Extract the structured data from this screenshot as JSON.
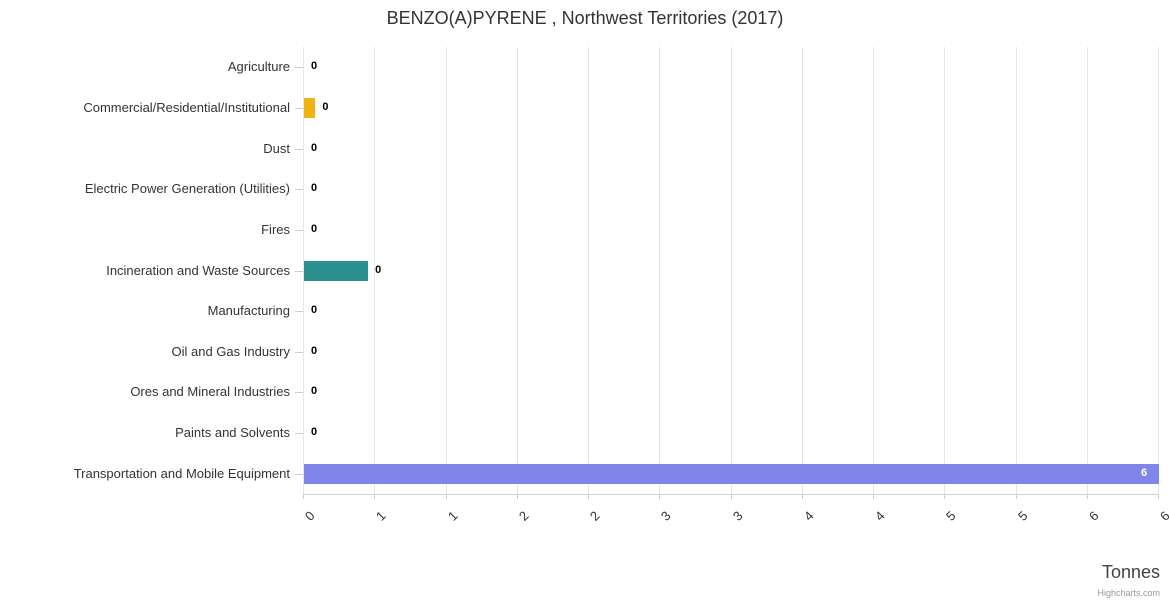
{
  "chart_data": {
    "type": "bar",
    "title": "BENZO(A)PYRENE , Northwest Territories (2017)",
    "xlabel": "Tonnes",
    "xlim": [
      0,
      6
    ],
    "grid": true,
    "legend": "none",
    "credits": "Highcharts.com",
    "categories": [
      "Agriculture",
      "Commercial/Residential/Institutional",
      "Dust",
      "Electric Power Generation (Utilities)",
      "Fires",
      "Incineration and Waste Sources",
      "Manufacturing",
      "Oil and Gas Industry",
      "Ores and Mineral Industries",
      "Paints and Solvents",
      "Transportation and Mobile Equipment"
    ],
    "points": [
      {
        "category": "Agriculture",
        "value": 0,
        "label": "0",
        "color": "#7cb5ec",
        "label_inside": false
      },
      {
        "category": "Commercial/Residential/Institutional",
        "value": 0.08,
        "label": "0",
        "color": "#eeb211",
        "label_inside": false
      },
      {
        "category": "Dust",
        "value": 0,
        "label": "0",
        "color": "#7cb5ec",
        "label_inside": false
      },
      {
        "category": "Electric Power Generation (Utilities)",
        "value": 0,
        "label": "0",
        "color": "#7cb5ec",
        "label_inside": false
      },
      {
        "category": "Fires",
        "value": 0,
        "label": "0",
        "color": "#7cb5ec",
        "label_inside": false
      },
      {
        "category": "Incineration and Waste Sources",
        "value": 0.45,
        "label": "0",
        "color": "#2b908f",
        "label_inside": false
      },
      {
        "category": "Manufacturing",
        "value": 0,
        "label": "0",
        "color": "#7cb5ec",
        "label_inside": false
      },
      {
        "category": "Oil and Gas Industry",
        "value": 0,
        "label": "0",
        "color": "#7cb5ec",
        "label_inside": false
      },
      {
        "category": "Ores and Mineral Industries",
        "value": 0,
        "label": "0",
        "color": "#7cb5ec",
        "label_inside": false
      },
      {
        "category": "Paints and Solvents",
        "value": 0,
        "label": "0",
        "color": "#7cb5ec",
        "label_inside": false
      },
      {
        "category": "Transportation and Mobile Equipment",
        "value": 6,
        "label": "6",
        "color": "#8085e9",
        "label_inside": true
      }
    ],
    "x_ticks": [
      {
        "value": 0,
        "label": "0"
      },
      {
        "value": 0.5,
        "label": "1"
      },
      {
        "value": 1,
        "label": "1"
      },
      {
        "value": 1.5,
        "label": "2"
      },
      {
        "value": 2,
        "label": "2"
      },
      {
        "value": 2.5,
        "label": "3"
      },
      {
        "value": 3,
        "label": "3"
      },
      {
        "value": 3.5,
        "label": "4"
      },
      {
        "value": 4,
        "label": "4"
      },
      {
        "value": 4.5,
        "label": "5"
      },
      {
        "value": 5,
        "label": "5"
      },
      {
        "value": 5.5,
        "label": "6"
      },
      {
        "value": 6,
        "label": "6"
      }
    ]
  }
}
